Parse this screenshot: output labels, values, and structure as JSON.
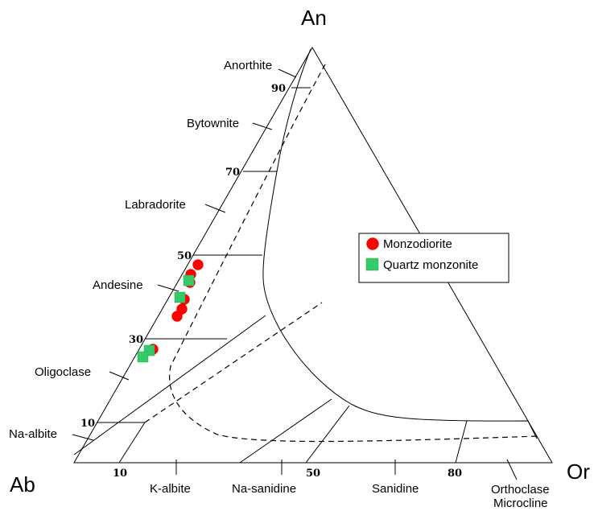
{
  "vertices": {
    "top": "An",
    "left": "Ab",
    "right": "Or"
  },
  "left_edge_ticks": [
    "90",
    "70",
    "50",
    "30",
    "10"
  ],
  "bottom_ticks": [
    "10",
    "50",
    "80"
  ],
  "left_fields": [
    "Anorthite",
    "Bytownite",
    "Labradorite",
    "Andesine",
    "Oligoclase",
    "Na-albite"
  ],
  "bottom_fields": [
    "K-albite",
    "Na-sanidine",
    "Sanidine",
    "Orthoclase",
    "Microcline"
  ],
  "legend": [
    {
      "name": "Monzodiorite",
      "marker": "circle",
      "color": "#ff0000"
    },
    {
      "name": "Quartz monzonite",
      "marker": "square",
      "color": "#33cc66"
    }
  ]
}
